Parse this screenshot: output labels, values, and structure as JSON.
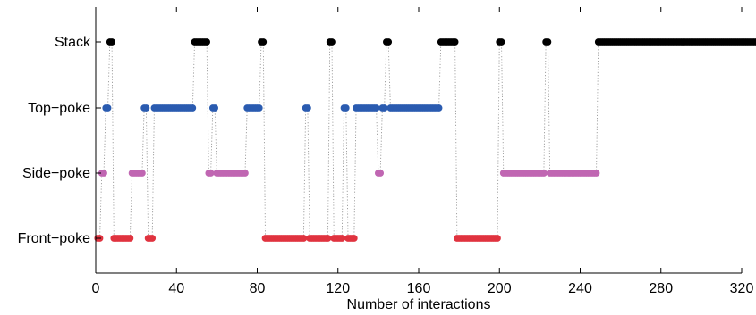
{
  "chart_data": {
    "type": "scatter",
    "title": "",
    "xlabel": "Number of interactions",
    "ylabel": "",
    "xlim": [
      0,
      320
    ],
    "x_ticks": [
      "0",
      "40",
      "80",
      "120",
      "160",
      "200",
      "240",
      "280",
      "320"
    ],
    "categories": [
      "Stack",
      "Top−poke",
      "Side−poke",
      "Front−poke"
    ],
    "category_colors": [
      "#000000",
      "#2a5bb0",
      "#c066b2",
      "#e0333f"
    ],
    "connector_style": "dotted grey line linking consecutive interactions",
    "grid": false,
    "legend": "none",
    "sequence": [
      3,
      3,
      2,
      2,
      1,
      1,
      0,
      0,
      3,
      3,
      3,
      3,
      3,
      3,
      3,
      3,
      3,
      2,
      2,
      2,
      2,
      2,
      2,
      1,
      1,
      3,
      3,
      3,
      1,
      1,
      1,
      1,
      1,
      1,
      1,
      1,
      1,
      1,
      1,
      1,
      1,
      1,
      1,
      1,
      1,
      1,
      1,
      1,
      0,
      0,
      0,
      0,
      0,
      0,
      0,
      2,
      2,
      1,
      1,
      2,
      2,
      2,
      2,
      2,
      2,
      2,
      2,
      2,
      2,
      2,
      2,
      2,
      2,
      2,
      1,
      1,
      1,
      1,
      1,
      1,
      1,
      0,
      0,
      3,
      3,
      3,
      3,
      3,
      3,
      3,
      3,
      3,
      3,
      3,
      3,
      3,
      3,
      3,
      3,
      3,
      3,
      3,
      3,
      1,
      1,
      3,
      3,
      3,
      3,
      3,
      3,
      3,
      3,
      3,
      3,
      0,
      0,
      3,
      3,
      3,
      3,
      3,
      1,
      1,
      3,
      3,
      3,
      3,
      1,
      1,
      1,
      1,
      1,
      1,
      1,
      1,
      1,
      1,
      1,
      2,
      2,
      1,
      1,
      0,
      0,
      1,
      1,
      1,
      1,
      1,
      1,
      1,
      1,
      1,
      1,
      1,
      1,
      1,
      1,
      1,
      1,
      1,
      1,
      1,
      1,
      1,
      1,
      1,
      1,
      1,
      0,
      0,
      0,
      0,
      0,
      0,
      0,
      0,
      3,
      3,
      3,
      3,
      3,
      3,
      3,
      3,
      3,
      3,
      3,
      3,
      3,
      3,
      3,
      3,
      3,
      3,
      3,
      3,
      3,
      0,
      0,
      2,
      2,
      2,
      2,
      2,
      2,
      2,
      2,
      2,
      2,
      2,
      2,
      2,
      2,
      2,
      2,
      2,
      2,
      2,
      2,
      2,
      0,
      0,
      2,
      2,
      2,
      2,
      2,
      2,
      2,
      2,
      2,
      2,
      2,
      2,
      2,
      2,
      2,
      2,
      2,
      2,
      2,
      2,
      2,
      2,
      2,
      2,
      0,
      0,
      0,
      0,
      0,
      0,
      0,
      0,
      0,
      0,
      0,
      0,
      0,
      0,
      0,
      0,
      0,
      0,
      0,
      0,
      0,
      0,
      0,
      0,
      0,
      0,
      0,
      0,
      0,
      0,
      0,
      0,
      0,
      0,
      0,
      0,
      0,
      0,
      0,
      0,
      0,
      0,
      0,
      0,
      0,
      0,
      0,
      0,
      0,
      0,
      0,
      0,
      0,
      0,
      0,
      0,
      0,
      0,
      0,
      0,
      0,
      0,
      0,
      0,
      0,
      0,
      0,
      0,
      0,
      0,
      0,
      0,
      0,
      0,
      0,
      0,
      0,
      0,
      0,
      0,
      0,
      0,
      0,
      0,
      0,
      0,
      0,
      0
    ]
  }
}
